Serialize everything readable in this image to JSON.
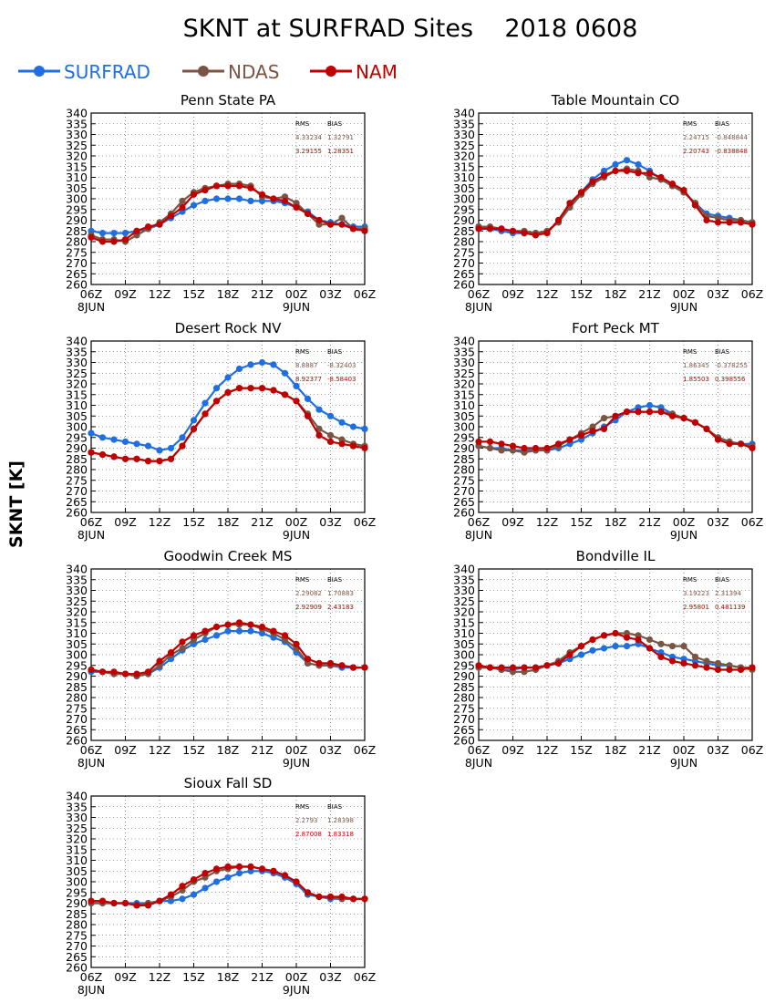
{
  "title": "SKNT at SURFRAD Sites    2018 0608",
  "ylabel": "SKNT [K]",
  "colors": {
    "SURFRAD": "#1f6fe0",
    "NDAS": "#7a5544",
    "NAM": "#c00000"
  },
  "legend": [
    "SURFRAD",
    "NDAS",
    "NAM"
  ],
  "stats_header": {
    "rms": "RMS",
    "bias": "BIAS"
  },
  "x_ticks": [
    "06Z",
    "09Z",
    "12Z",
    "15Z",
    "18Z",
    "21Z",
    "00Z",
    "03Z",
    "06Z"
  ],
  "x_dates": {
    "start": "8JUN",
    "mid": "9JUN"
  },
  "y_ticks": [
    260,
    265,
    270,
    275,
    280,
    285,
    290,
    295,
    300,
    305,
    310,
    315,
    320,
    325,
    330,
    335,
    340
  ],
  "chart_data": [
    {
      "type": "line",
      "title": "Penn State PA",
      "ylim": [
        260,
        340
      ],
      "x": [
        0,
        1,
        2,
        3,
        4,
        5,
        6,
        7,
        8,
        9,
        10,
        11,
        12,
        13,
        14,
        15,
        16,
        17,
        18,
        19,
        20,
        21,
        22,
        23,
        24
      ],
      "x_unit": "hours after 06Z 8JUN",
      "grid": true,
      "legend_position": "top-left",
      "stats": {
        "NDAS": [
          "4.33234",
          "1.32791"
        ],
        "NAM": [
          "3.29155",
          "1.28351"
        ]
      },
      "series": [
        {
          "name": "SURFRAD",
          "values": [
            285,
            284,
            284,
            284,
            285,
            286,
            288,
            291,
            294,
            297,
            299,
            300,
            300,
            300,
            299,
            299,
            299,
            298,
            296,
            294,
            290,
            289,
            288,
            287,
            287
          ]
        },
        {
          "name": "NDAS",
          "values": [
            283,
            281,
            281,
            280,
            283,
            286,
            289,
            293,
            299,
            303,
            305,
            306,
            307,
            307,
            306,
            301,
            300,
            301,
            298,
            293,
            288,
            288,
            291,
            286,
            286
          ]
        },
        {
          "name": "NAM",
          "values": [
            282,
            280,
            280,
            281,
            285,
            287,
            288,
            292,
            296,
            302,
            304,
            306,
            306,
            306,
            305,
            302,
            300,
            299,
            296,
            293,
            290,
            288,
            288,
            286,
            285
          ]
        }
      ]
    },
    {
      "type": "line",
      "title": "Table Mountain CO",
      "ylim": [
        260,
        340
      ],
      "x": [
        0,
        1,
        2,
        3,
        4,
        5,
        6,
        7,
        8,
        9,
        10,
        11,
        12,
        13,
        14,
        15,
        16,
        17,
        18,
        19,
        20,
        21,
        22,
        23,
        24
      ],
      "x_unit": "hours after 06Z 8JUN",
      "grid": true,
      "legend_position": "top-left",
      "stats": {
        "NDAS": [
          "2.24715",
          "-0.848844"
        ],
        "NAM": [
          "2.20743",
          "-0.838848"
        ]
      },
      "series": [
        {
          "name": "SURFRAD",
          "values": [
            287,
            286,
            285,
            284,
            284,
            284,
            284,
            290,
            297,
            303,
            309,
            313,
            316,
            318,
            316,
            313,
            309,
            306,
            303,
            298,
            293,
            292,
            291,
            290,
            289
          ]
        },
        {
          "name": "NDAS",
          "values": [
            287,
            287,
            286,
            285,
            285,
            284,
            285,
            289,
            296,
            302,
            307,
            310,
            313,
            314,
            313,
            310,
            309,
            306,
            303,
            298,
            292,
            291,
            290,
            290,
            289
          ]
        },
        {
          "name": "NAM",
          "values": [
            286,
            286,
            286,
            285,
            284,
            283,
            284,
            290,
            298,
            303,
            308,
            311,
            313,
            313,
            312,
            312,
            310,
            307,
            304,
            297,
            290,
            289,
            289,
            289,
            288
          ]
        }
      ]
    },
    {
      "type": "line",
      "title": "Desert Rock NV",
      "ylim": [
        260,
        340
      ],
      "x": [
        0,
        1,
        2,
        3,
        4,
        5,
        6,
        7,
        8,
        9,
        10,
        11,
        12,
        13,
        14,
        15,
        16,
        17,
        18,
        19,
        20,
        21,
        22,
        23,
        24
      ],
      "x_unit": "hours after 06Z 8JUN",
      "grid": true,
      "legend_position": "top-left",
      "stats": {
        "NDAS": [
          "8.8887",
          "-8.32403"
        ],
        "NAM": [
          "8.92377",
          "-8.58403"
        ]
      },
      "series": [
        {
          "name": "SURFRAD",
          "values": [
            297,
            295,
            294,
            293,
            292,
            291,
            289,
            290,
            295,
            303,
            311,
            318,
            323,
            327,
            329,
            330,
            329,
            325,
            319,
            313,
            308,
            305,
            302,
            300,
            299
          ]
        },
        {
          "name": "NDAS",
          "values": [
            288,
            287,
            286,
            285,
            285,
            284,
            284,
            285,
            291,
            299,
            306,
            312,
            316,
            318,
            318,
            318,
            317,
            315,
            312,
            306,
            299,
            296,
            294,
            292,
            291
          ]
        },
        {
          "name": "NAM",
          "values": [
            288,
            287,
            286,
            285,
            285,
            284,
            284,
            285,
            291,
            299,
            306,
            312,
            316,
            318,
            318,
            318,
            317,
            315,
            312,
            305,
            296,
            293,
            292,
            291,
            290
          ]
        }
      ]
    },
    {
      "type": "line",
      "title": "Fort Peck MT",
      "ylim": [
        260,
        340
      ],
      "x": [
        0,
        1,
        2,
        3,
        4,
        5,
        6,
        7,
        8,
        9,
        10,
        11,
        12,
        13,
        14,
        15,
        16,
        17,
        18,
        19,
        20,
        21,
        22,
        23,
        24
      ],
      "x_unit": "hours after 06Z 8JUN",
      "grid": true,
      "legend_position": "top-left",
      "stats": {
        "NDAS": [
          "1.86345",
          "-0.378255"
        ],
        "NAM": [
          "1.85503",
          "0.398556"
        ]
      },
      "series": [
        {
          "name": "SURFRAD",
          "values": [
            291,
            290,
            290,
            289,
            289,
            289,
            289,
            290,
            292,
            294,
            297,
            300,
            303,
            307,
            309,
            310,
            309,
            306,
            304,
            302,
            299,
            295,
            293,
            292,
            292
          ]
        },
        {
          "name": "NDAS",
          "values": [
            291,
            290,
            289,
            289,
            288,
            289,
            289,
            291,
            294,
            297,
            300,
            304,
            305,
            307,
            307,
            307,
            307,
            306,
            304,
            302,
            299,
            295,
            293,
            292,
            291
          ]
        },
        {
          "name": "NAM",
          "values": [
            293,
            293,
            292,
            291,
            290,
            290,
            290,
            292,
            294,
            296,
            298,
            299,
            305,
            307,
            307,
            307,
            307,
            305,
            304,
            302,
            299,
            294,
            292,
            292,
            290
          ]
        }
      ]
    },
    {
      "type": "line",
      "title": "Goodwin Creek MS",
      "ylim": [
        260,
        340
      ],
      "x": [
        0,
        1,
        2,
        3,
        4,
        5,
        6,
        7,
        8,
        9,
        10,
        11,
        12,
        13,
        14,
        15,
        16,
        17,
        18,
        19,
        20,
        21,
        22,
        23,
        24
      ],
      "x_unit": "hours after 06Z 8JUN",
      "grid": true,
      "legend_position": "top-left",
      "stats": {
        "NDAS": [
          "2.29082",
          "1.70883"
        ],
        "NAM": [
          "2.92909",
          "2.43183"
        ]
      },
      "series": [
        {
          "name": "SURFRAD",
          "values": [
            292,
            292,
            291,
            291,
            290,
            291,
            294,
            298,
            302,
            305,
            307,
            309,
            311,
            311,
            311,
            310,
            308,
            306,
            301,
            296,
            295,
            295,
            294,
            294,
            294
          ]
        },
        {
          "name": "NDAS",
          "values": [
            293,
            292,
            291,
            291,
            290,
            291,
            295,
            300,
            303,
            307,
            310,
            313,
            314,
            314,
            314,
            312,
            310,
            307,
            303,
            296,
            295,
            295,
            295,
            294,
            294
          ]
        },
        {
          "name": "NAM",
          "values": [
            293,
            292,
            292,
            291,
            291,
            292,
            297,
            301,
            306,
            309,
            311,
            313,
            314,
            315,
            314,
            313,
            311,
            309,
            305,
            298,
            296,
            296,
            295,
            294,
            294
          ]
        }
      ]
    },
    {
      "type": "line",
      "title": "Bondville IL",
      "ylim": [
        260,
        340
      ],
      "x": [
        0,
        1,
        2,
        3,
        4,
        5,
        6,
        7,
        8,
        9,
        10,
        11,
        12,
        13,
        14,
        15,
        16,
        17,
        18,
        19,
        20,
        21,
        22,
        23,
        24
      ],
      "x_unit": "hours after 06Z 8JUN",
      "grid": true,
      "legend_position": "top-left",
      "stats": {
        "NDAS": [
          "3.19223",
          "2.31394"
        ],
        "NAM": [
          "2.95801",
          "0.481139"
        ]
      },
      "series": [
        {
          "name": "SURFRAD",
          "values": [
            294,
            294,
            293,
            293,
            294,
            294,
            295,
            296,
            298,
            300,
            302,
            303,
            304,
            304,
            305,
            303,
            301,
            299,
            298,
            297,
            296,
            295,
            295,
            294,
            294
          ]
        },
        {
          "name": "NDAS",
          "values": [
            294,
            294,
            293,
            292,
            292,
            293,
            295,
            297,
            301,
            304,
            307,
            309,
            310,
            310,
            309,
            307,
            305,
            304,
            304,
            299,
            297,
            296,
            295,
            294,
            293
          ]
        },
        {
          "name": "NAM",
          "values": [
            295,
            294,
            294,
            294,
            294,
            294,
            295,
            296,
            300,
            304,
            307,
            309,
            310,
            308,
            307,
            303,
            299,
            297,
            296,
            295,
            294,
            293,
            293,
            293,
            294
          ]
        }
      ]
    },
    {
      "type": "line",
      "title": "Sioux Fall SD",
      "ylim": [
        260,
        340
      ],
      "x": [
        0,
        1,
        2,
        3,
        4,
        5,
        6,
        7,
        8,
        9,
        10,
        11,
        12,
        13,
        14,
        15,
        16,
        17,
        18,
        19,
        20,
        21,
        22,
        23,
        24
      ],
      "x_unit": "hours after 06Z 8JUN",
      "grid": true,
      "legend_position": "top-left",
      "stats": {
        "NDAS": [
          "2.2793",
          "1.28398"
        ],
        "NAM": [
          "2.87008",
          "1.83318"
        ]
      },
      "series": [
        {
          "name": "SURFRAD",
          "values": [
            290,
            290,
            290,
            290,
            290,
            290,
            291,
            291,
            292,
            294,
            297,
            300,
            302,
            304,
            305,
            305,
            304,
            302,
            299,
            294,
            293,
            292,
            292,
            292,
            292
          ]
        },
        {
          "name": "NDAS",
          "values": [
            290,
            290,
            290,
            290,
            289,
            290,
            291,
            293,
            296,
            300,
            302,
            305,
            306,
            307,
            307,
            306,
            305,
            303,
            300,
            295,
            293,
            293,
            292,
            292,
            292
          ]
        },
        {
          "name": "NAM",
          "values": [
            291,
            291,
            290,
            290,
            289,
            289,
            291,
            294,
            298,
            301,
            304,
            306,
            307,
            307,
            307,
            306,
            305,
            303,
            300,
            295,
            293,
            293,
            293,
            292,
            292
          ]
        }
      ]
    }
  ]
}
